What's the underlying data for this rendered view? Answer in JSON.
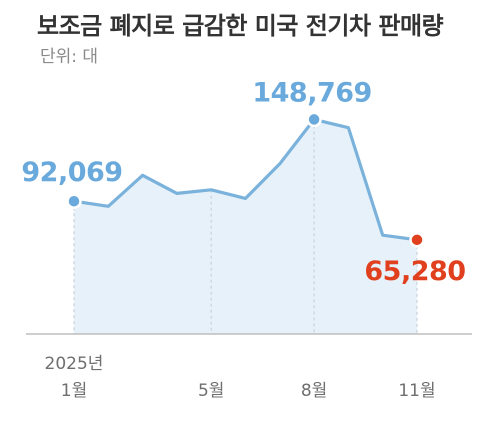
{
  "title": "보조금 폐지로 급감한 미국 전기차 판매량",
  "subtitle": "단위: 대",
  "chart_data": {
    "type": "area",
    "title": "보조금 폐지로 급감한 미국 전기차 판매량",
    "subtitle": "단위: 대",
    "unit": "대",
    "x": [
      "2025-01",
      "2025-02",
      "2025-03",
      "2025-04",
      "2025-05",
      "2025-06",
      "2025-07",
      "2025-08",
      "2025-09",
      "2025-10",
      "2025-11"
    ],
    "values": [
      92069,
      88500,
      110000,
      97500,
      100000,
      94000,
      118000,
      148769,
      143000,
      68500,
      65280
    ],
    "x_tick_labels": [
      {
        "index": 0,
        "label": "1월",
        "year_label": "2025년"
      },
      {
        "index": 4,
        "label": "5월"
      },
      {
        "index": 7,
        "label": "8월"
      },
      {
        "index": 10,
        "label": "11월"
      }
    ],
    "annotations": [
      {
        "index": 0,
        "label": "92,069",
        "color": "#6aa9dc"
      },
      {
        "index": 7,
        "label": "148,769",
        "color": "#6aa9dc"
      },
      {
        "index": 10,
        "label": "65,280",
        "color": "#e0401d"
      }
    ],
    "colors": {
      "line": "#7ab2dc",
      "area": "#e6f1f9",
      "highlight": "#e0401d",
      "gridline": "#c7d3de",
      "axis": "#bdbdbd",
      "tick_text": "#6f6f6f"
    },
    "ylim": [
      0,
      165000
    ],
    "grid": false,
    "legend": "none"
  }
}
